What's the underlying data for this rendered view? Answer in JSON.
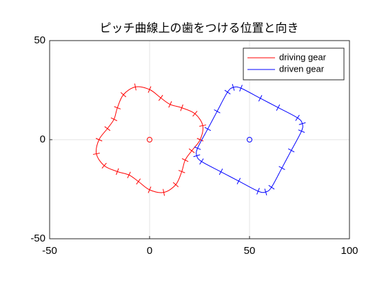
{
  "chart_data": {
    "type": "line",
    "title": "ピッチ曲線上の歯をつける位置と向き",
    "xlim": [
      -50,
      100
    ],
    "xticks": [
      -50,
      0,
      50,
      100
    ],
    "ylim": [
      -50,
      50
    ],
    "yticks": [
      -50,
      0,
      50
    ],
    "grid": true,
    "legend": "northeast",
    "closed": true,
    "series": [
      {
        "name": "driving gear",
        "color": "#ff0000",
        "center": [
          0,
          0
        ],
        "x": [
          25.3,
          26.6,
          22.7,
          16.1,
          10.3,
          5.6,
          0,
          -7.1,
          -13.1,
          -16.1,
          -17.8,
          -21.1,
          -25.3,
          -26.6,
          -22.7,
          -16.1,
          -10.3,
          -5.6,
          0,
          7.1,
          13.1,
          16.1,
          17.8,
          21.1
        ],
        "y": [
          0,
          7.1,
          13.1,
          16.1,
          17.8,
          21.1,
          25.3,
          26.6,
          22.7,
          16.1,
          10.3,
          5.6,
          0,
          -7.1,
          -13.1,
          -16.1,
          -17.8,
          -21.1,
          -25.3,
          -26.6,
          -22.7,
          -16.1,
          -10.3,
          -5.6
        ]
      },
      {
        "name": "driven gear",
        "color": "#0000ff",
        "center": [
          50,
          0
        ],
        "x": [
          61.0,
          66.2,
          70.9,
          76.0,
          76.4,
          74.0,
          64.3,
          55.4,
          45.7,
          41.9,
          39.0,
          33.8,
          29.1,
          24.0,
          23.6,
          26.0,
          35.7,
          44.6,
          54.3,
          58.1
        ],
        "y": [
          -24.0,
          -14.3,
          -5.4,
          4.3,
          8.1,
          11.0,
          16.2,
          20.9,
          26.0,
          26.4,
          24.0,
          14.3,
          5.4,
          -4.3,
          -8.1,
          -11.0,
          -16.2,
          -20.9,
          -26.0,
          -26.4
        ]
      }
    ]
  }
}
